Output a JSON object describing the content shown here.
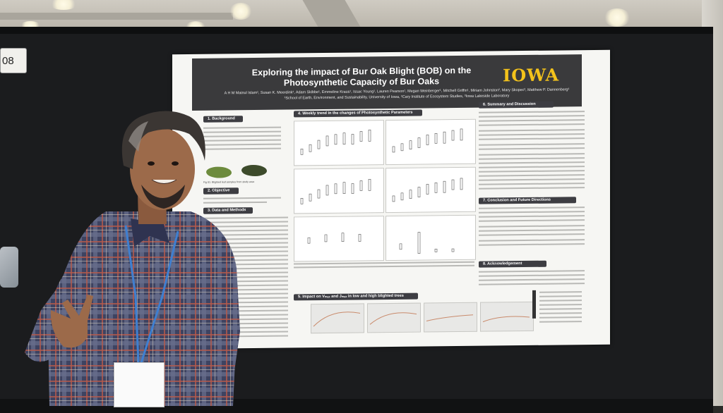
{
  "booth_number": "08",
  "poster": {
    "title_line1": "Exploring the impact of Bur Oak Blight (BOB) on the",
    "title_line2": "Photosynthetic Capacity of Bur Oaks",
    "logo": "IOWA",
    "authors": "A H M Mainul Islam¹, Susan K. Meerdink¹, Adam Skibbe¹, Emmeline Kraus¹, Issac Young¹, Lauren Pearson¹, Megan Weinberger¹, Mitchell Griffin¹, Miriam Johnston², Mary Skopec³, Matthew P. Dannenberg¹",
    "affiliations": "¹School of Earth, Environment, and Sustainability, University of Iowa, ²Cary Institute of Ecosystem Studies, ³Iowa Lakeside Laboratory",
    "sections": {
      "background": "1. Background",
      "objective": "2. Objective",
      "data_methods": "3. Data and Methods",
      "weekly_trend": "4. Weekly trend in the changes of Photosynthetic Parameters",
      "impact": "5. Impact on Vₘₐₓ and Jₘₐₓ in low and high blighted trees",
      "summary": "6. Summary and Discussion",
      "conclusion": "7. Conclusion and Future Directions",
      "acknowledgement": "8. Acknowledgement"
    },
    "figure_caption": "Fig 01: Blighted leaf samples from study area"
  },
  "colors": {
    "poster_title_bar": "#3a3a3c",
    "logo_gold": "#f3c21b",
    "board": "#1b1c1e",
    "shirt_plaid": "#4a4f6e",
    "lanyard": "#3f7fd0"
  }
}
